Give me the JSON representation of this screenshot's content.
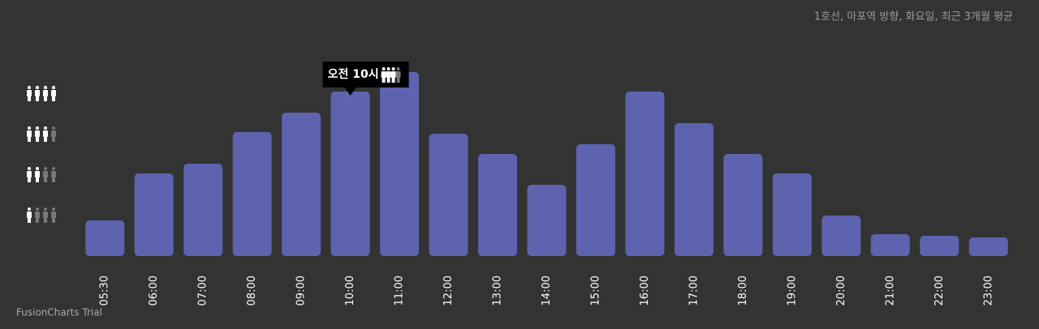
{
  "chart_data": {
    "type": "bar",
    "subtitle": "1호선, 마포역 방향, 화요일, 최근 3개월 평균",
    "categories": [
      "05:30",
      "06:00",
      "07:00",
      "08:00",
      "09:00",
      "10:00",
      "11:00",
      "12:00",
      "13:00",
      "14:00",
      "15:00",
      "16:00",
      "17:00",
      "18:00",
      "19:00",
      "20:00",
      "21:00",
      "22:00",
      "23:00"
    ],
    "values": [
      0.88,
      2.04,
      2.28,
      3.06,
      3.54,
      4.06,
      4.54,
      3.02,
      2.52,
      1.76,
      2.76,
      4.06,
      3.28,
      2.52,
      2.04,
      1.0,
      0.54,
      0.5,
      0.46
    ],
    "color": "#5e63b0",
    "ylim": [
      0,
      4.6
    ],
    "yticks": [
      1,
      2,
      3,
      4
    ],
    "tooltip": "오전 10시",
    "watermark": "FusionCharts Trial"
  }
}
